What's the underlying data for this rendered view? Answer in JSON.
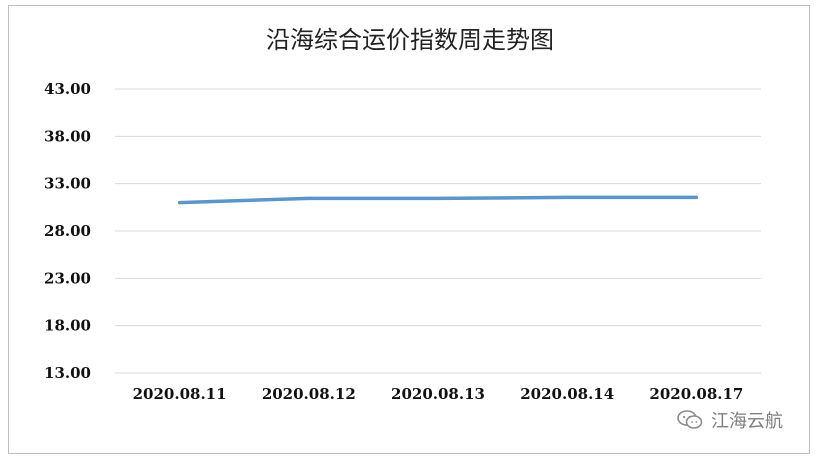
{
  "chart_data": {
    "type": "line",
    "title": "沿海综合运价指数周走势图",
    "xlabel": "",
    "ylabel": "",
    "categories": [
      "2020.08.11",
      "2020.08.12",
      "2020.08.13",
      "2020.08.14",
      "2020.08.17"
    ],
    "series": [
      {
        "values": [
          31.0,
          31.45,
          31.45,
          31.55,
          31.55
        ]
      }
    ],
    "ylim": [
      13.0,
      43.0
    ],
    "yticks": [
      "13.00",
      "18.00",
      "23.00",
      "28.00",
      "33.00",
      "38.00",
      "43.00"
    ],
    "grid": true,
    "legend": "none",
    "line_color": "#5b95c9",
    "grid_color": "#d9d9d9"
  },
  "watermark": {
    "icon": "wechat-icon",
    "text": "江海云航"
  }
}
